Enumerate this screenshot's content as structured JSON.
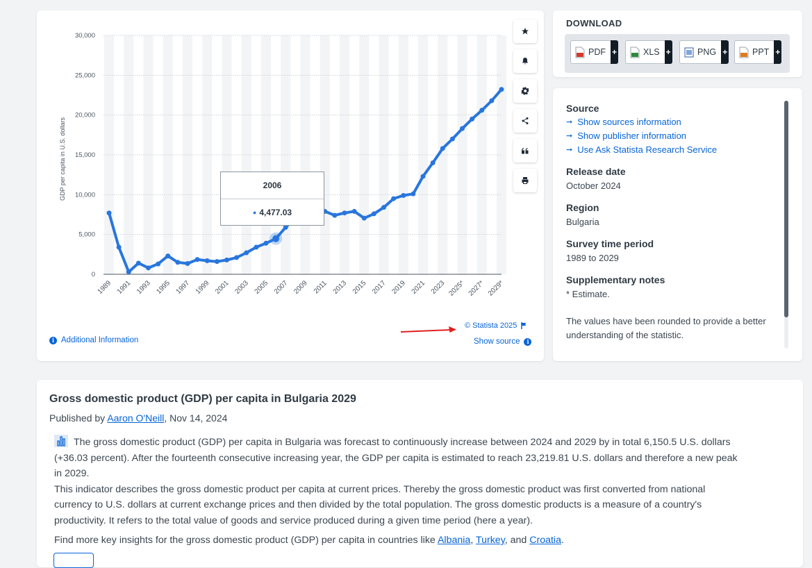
{
  "chart_data": {
    "type": "line",
    "ylabel": "GDP per capita in U.S. dollars",
    "ylim": [
      0,
      30000
    ],
    "yticks": [
      "0",
      "5,000",
      "10,000",
      "15,000",
      "20,000",
      "25,000",
      "30,000"
    ],
    "xtick_labels": [
      "1989",
      "1991",
      "1993",
      "1995",
      "1997",
      "1999",
      "2001",
      "2003",
      "2005",
      "2007",
      "2009",
      "2011",
      "2013",
      "2015",
      "2017",
      "2019",
      "2021",
      "2023",
      "2025*",
      "2027*",
      "2029*"
    ],
    "x": [
      1989,
      1990,
      1991,
      1992,
      1993,
      1994,
      1995,
      1996,
      1997,
      1998,
      1999,
      2000,
      2001,
      2002,
      2003,
      2004,
      2005,
      2006,
      2007,
      2008,
      2009,
      2010,
      2011,
      2012,
      2013,
      2014,
      2015,
      2016,
      2017,
      2018,
      2019,
      2020,
      2021,
      2022,
      2023,
      2024,
      2025,
      2026,
      2027,
      2028,
      2029
    ],
    "series": [
      {
        "values": [
          7700,
          3400,
          300,
          1400,
          800,
          1300,
          2300,
          1500,
          1350,
          1850,
          1700,
          1600,
          1800,
          2100,
          2700,
          3400,
          3900,
          4477.03,
          5900,
          7100,
          7000,
          6900,
          7900,
          7400,
          7700,
          7900,
          7050,
          7600,
          8400,
          9500,
          9900,
          10100,
          12300,
          14000,
          15800,
          17000,
          18300,
          19500,
          20600,
          21800,
          23219.81
        ],
        "color": "#2876dd"
      }
    ],
    "grid": true,
    "tooltip": {
      "year": "2006",
      "value": "4,477.03"
    }
  },
  "tools": [
    "star-icon",
    "bell-icon",
    "gear-icon",
    "share-icon",
    "quote-icon",
    "print-icon"
  ],
  "chart_footer": {
    "additional_info": "Additional Information",
    "credit": "© Statista 2025",
    "show_source": "Show source"
  },
  "download": {
    "title": "DOWNLOAD",
    "buttons": [
      {
        "label": "PDF",
        "color": "#d23a2a"
      },
      {
        "label": "XLS",
        "color": "#2f8a3a"
      },
      {
        "label": "PNG",
        "color": "#2f5fa8"
      },
      {
        "label": "PPT",
        "color": "#e07a1f"
      }
    ]
  },
  "info": {
    "source_heading": "Source",
    "source_links": [
      "Show sources information",
      "Show publisher information",
      "Use Ask Statista Research Service"
    ],
    "release_heading": "Release date",
    "release_value": "October 2024",
    "region_heading": "Region",
    "region_value": "Bulgaria",
    "survey_heading": "Survey time period",
    "survey_value": "1989 to 2029",
    "notes_heading": "Supplementary notes",
    "notes_estimate": "* Estimate.",
    "notes_text": "The values have been rounded to provide a better understanding of the statistic."
  },
  "description": {
    "title": "Gross domestic product (GDP) per capita in Bulgaria 2029",
    "published_prefix": "Published by ",
    "author": "Aaron O'Neill",
    "published_date": ", Nov 14, 2024",
    "para1": "The gross domestic product (GDP) per capita in Bulgaria was forecast to continuously increase between 2024 and 2029 by in total 6,150.5 U.S. dollars (+36.03 percent). After the fourteenth consecutive increasing year, the GDP per capita is estimated to reach 23,219.81 U.S. dollars and therefore a new peak in 2029.",
    "para2": "This indicator describes the gross domestic product per capita at current prices. Thereby the gross domestic product was first converted from national currency to U.S. dollars at current exchange prices and then divided by the total population. The gross domestic products is a measure of a country's productivity. It refers to the total value of goods and service produced during a given time period (here a year).",
    "insights_prefix": "Find more key insights for the gross domestic product (GDP) per capita in countries like ",
    "country1": "Albania",
    "sep1": ", ",
    "country2": "Turkey",
    "sep2": ", and ",
    "country3": "Croatia",
    "insights_suffix": "."
  }
}
